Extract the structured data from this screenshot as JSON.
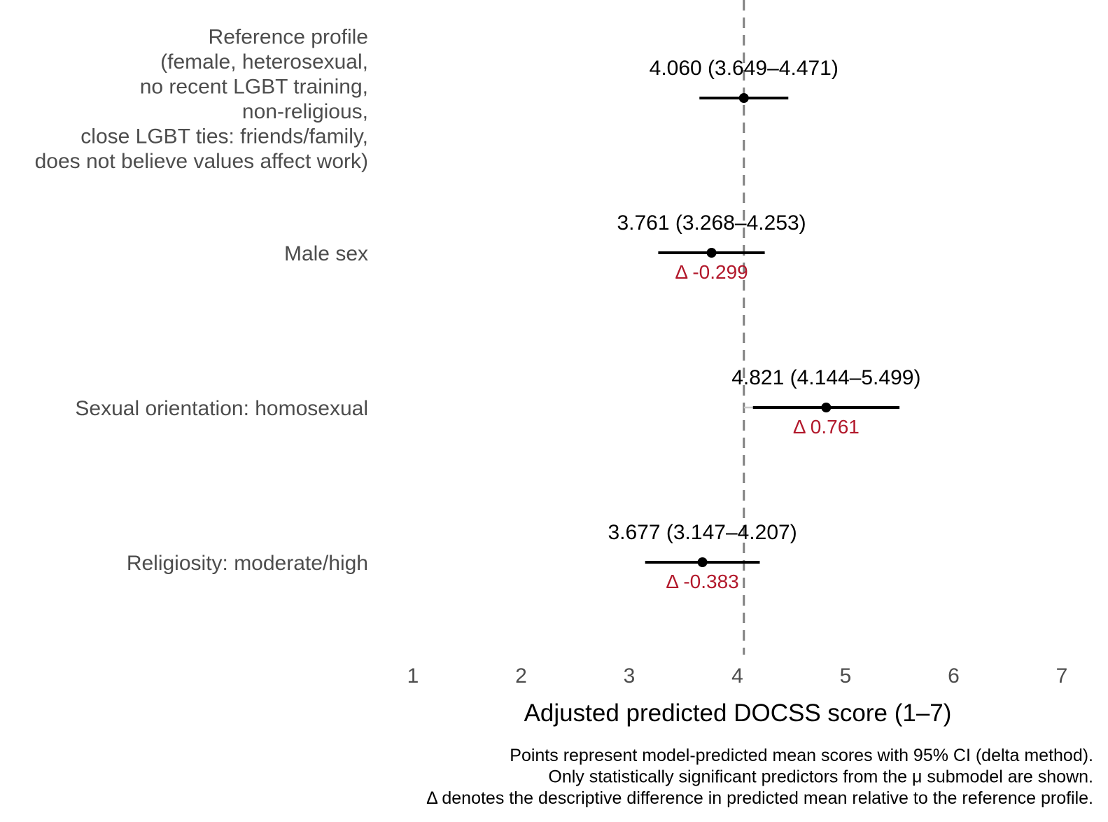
{
  "chart_data": {
    "type": "forest",
    "title": "",
    "xlabel": "Adjusted predicted DOCSS score (1–7)",
    "ylabel": "",
    "xlim": [
      1,
      7
    ],
    "xticks": [
      1,
      2,
      3,
      4,
      5,
      6,
      7
    ],
    "grid": false,
    "reference_line": {
      "value": 4.06,
      "style": "dashed",
      "color": "#808080"
    },
    "colors": {
      "point": "#000000",
      "delta": "#b2182b",
      "ref_line": "#808080",
      "axis_text": "#4d4d4d"
    },
    "rows": [
      {
        "label_lines": [
          "Reference profile",
          "(female, heterosexual,",
          "no recent LGBT training,",
          "non-religious,",
          "close LGBT ties: friends/family,",
          "does not believe values affect work)"
        ],
        "estimate": 4.06,
        "lower": 3.649,
        "upper": 4.471,
        "estimate_label": "4.060 (3.649–4.471)",
        "delta_label": null
      },
      {
        "label_lines": [
          "Male sex"
        ],
        "estimate": 3.761,
        "lower": 3.268,
        "upper": 4.253,
        "estimate_label": "3.761 (3.268–4.253)",
        "delta_label": "Δ -0.299"
      },
      {
        "label_lines": [
          "Sexual orientation: homosexual"
        ],
        "estimate": 4.821,
        "lower": 4.144,
        "upper": 5.499,
        "estimate_label": "4.821 (4.144–5.499)",
        "delta_label": "Δ 0.761"
      },
      {
        "label_lines": [
          "Religiosity: moderate/high"
        ],
        "estimate": 3.677,
        "lower": 3.147,
        "upper": 4.207,
        "estimate_label": "3.677 (3.147–4.207)",
        "delta_label": "Δ -0.383"
      }
    ],
    "caption": [
      "Points represent model-predicted mean scores with 95% CI (delta method).",
      "Only statistically significant predictors from the μ submodel are shown.",
      "Δ denotes the descriptive difference in predicted mean relative to the reference profile."
    ]
  }
}
